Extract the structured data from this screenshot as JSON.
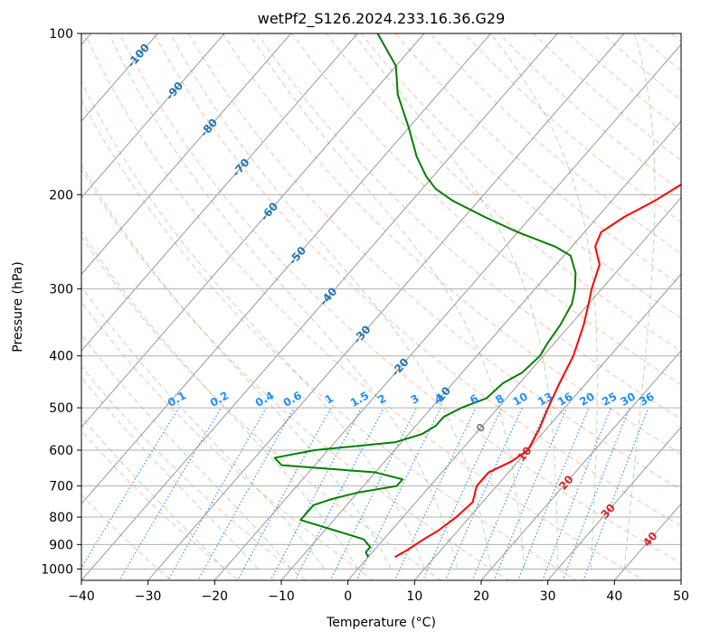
{
  "chart_data": {
    "type": "line",
    "title": "wetPf2_S126.2024.233.16.36.G29",
    "xlabel": "Temperature (°C)",
    "ylabel": "Pressure (hPa)",
    "xlim": [
      -40,
      50
    ],
    "ylim": [
      1050,
      100
    ],
    "yscale": "log",
    "skew": "skew-T",
    "grid": true,
    "x_ticks": [
      "−40",
      "−30",
      "−20",
      "−10",
      "0",
      "10",
      "20",
      "30",
      "40",
      "50"
    ],
    "x_tick_values": [
      -40,
      -30,
      -20,
      -10,
      0,
      10,
      20,
      30,
      40,
      50
    ],
    "y_ticks": [
      "100",
      "200",
      "300",
      "400",
      "500",
      "600",
      "700",
      "800",
      "900",
      "1000"
    ],
    "y_tick_values": [
      100,
      200,
      300,
      400,
      500,
      600,
      700,
      800,
      900,
      1000
    ],
    "isotherm_labels": [
      "-100",
      "-90",
      "-80",
      "-70",
      "-60",
      "-50",
      "-40",
      "-30",
      "-20",
      "-10",
      "0",
      "10",
      "20",
      "30",
      "40"
    ],
    "isotherm_label_values": [
      -100,
      -90,
      -80,
      -70,
      -60,
      -50,
      -40,
      -30,
      -20,
      -10,
      0,
      10,
      20,
      30,
      40
    ],
    "isotherm_label_colors": [
      "#1f77b4",
      "#1f77b4",
      "#1f77b4",
      "#1f77b4",
      "#1f77b4",
      "#1f77b4",
      "#1f77b4",
      "#1f77b4",
      "#1f77b4",
      "#1f77b4",
      "#808080",
      "#d62728",
      "#d62728",
      "#d62728",
      "#d62728"
    ],
    "mixing_ratio_labels": [
      "0.1",
      "0.2",
      "0.4",
      "0.6",
      "1",
      "1.5",
      "2",
      "3",
      "4",
      "6",
      "8",
      "10",
      "13",
      "16",
      "20",
      "25",
      "30",
      "36"
    ],
    "mixing_ratio_values": [
      0.1,
      0.2,
      0.4,
      0.6,
      1,
      1.5,
      2,
      3,
      4,
      6,
      8,
      10,
      13,
      16,
      20,
      25,
      30,
      36
    ],
    "series": [
      {
        "color": "#ff0000",
        "pressure": [
          950,
          920,
          880,
          850,
          800,
          750,
          700,
          660,
          630,
          600,
          550,
          500,
          450,
          400,
          350,
          320,
          300,
          270,
          250,
          235,
          220,
          205,
          190,
          170,
          150,
          130,
          115,
          100
        ],
        "temperature": [
          4,
          5,
          6,
          7,
          8,
          8.5,
          7,
          7,
          9,
          10,
          9,
          7.5,
          6,
          4.5,
          2,
          0,
          -1.5,
          -3.5,
          -6.5,
          -7.5,
          -6,
          -3.5,
          -1.5,
          1,
          4,
          4,
          6.5,
          9.5
        ]
      },
      {
        "color": "#008000",
        "pressure": [
          950,
          930,
          910,
          880,
          850,
          810,
          790,
          760,
          740,
          720,
          700,
          680,
          660,
          640,
          620,
          600,
          580,
          560,
          540,
          520,
          500,
          480,
          450,
          430,
          400,
          380,
          350,
          320,
          300,
          280,
          260,
          250,
          235,
          220,
          205,
          195,
          185,
          170,
          150,
          130,
          115,
          100
        ],
        "temperature": [
          0,
          -1,
          -1,
          -3,
          -8,
          -15,
          -15,
          -15,
          -13,
          -10,
          -5,
          -5,
          -10,
          -25,
          -27,
          -22,
          -11,
          -8,
          -7,
          -7,
          -5.5,
          -3,
          -2.5,
          -1,
          -0.5,
          -1,
          -1.5,
          -2.5,
          -4,
          -6,
          -9,
          -12.5,
          -20,
          -27,
          -34,
          -38,
          -41,
          -45,
          -50,
          -56,
          -60,
          -67
        ]
      }
    ]
  }
}
